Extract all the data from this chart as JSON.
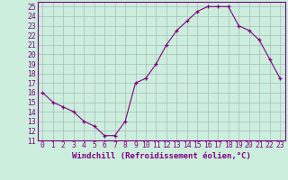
{
  "x": [
    0,
    1,
    2,
    3,
    4,
    5,
    6,
    7,
    8,
    9,
    10,
    11,
    12,
    13,
    14,
    15,
    16,
    17,
    18,
    19,
    20,
    21,
    22,
    23
  ],
  "y": [
    16,
    15,
    14.5,
    14,
    13,
    12.5,
    11.5,
    11.5,
    13,
    17,
    17.5,
    19,
    21,
    22.5,
    23.5,
    24.5,
    25,
    25,
    25,
    23,
    22.5,
    21.5,
    19.5,
    17.5
  ],
  "line_color": "#800080",
  "marker": "+",
  "marker_size": 3,
  "bg_color": "#cceedd",
  "grid_color": "#aabbbb",
  "xlabel": "Windchill (Refroidissement éolien,°C)",
  "xlabel_fontsize": 6.5,
  "tick_fontsize": 5.8,
  "ylim": [
    11,
    25.5
  ],
  "xlim": [
    -0.5,
    23.5
  ],
  "yticks": [
    11,
    12,
    13,
    14,
    15,
    16,
    17,
    18,
    19,
    20,
    21,
    22,
    23,
    24,
    25
  ],
  "xticks": [
    0,
    1,
    2,
    3,
    4,
    5,
    6,
    7,
    8,
    9,
    10,
    11,
    12,
    13,
    14,
    15,
    16,
    17,
    18,
    19,
    20,
    21,
    22,
    23
  ]
}
